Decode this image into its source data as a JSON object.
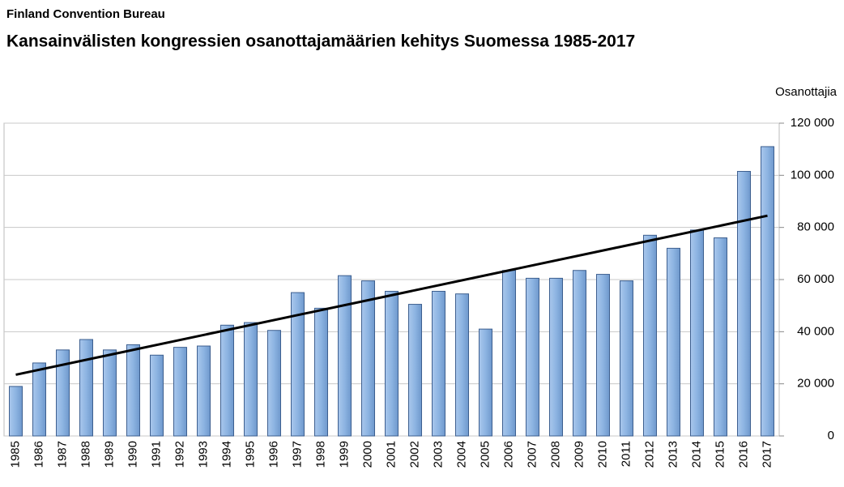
{
  "chart_data": {
    "type": "bar",
    "subtitle": "Finland Convention Bureau",
    "title": "Kansainvälisten kongressien osanottajamäärien kehitys Suomessa 1985-2017",
    "y_label": "Osanottajia",
    "categories": [
      "1985",
      "1986",
      "1987",
      "1988",
      "1989",
      "1990",
      "1991",
      "1992",
      "1993",
      "1994",
      "1995",
      "1996",
      "1997",
      "1998",
      "1999",
      "2000",
      "2001",
      "2002",
      "2003",
      "2004",
      "2005",
      "2006",
      "2007",
      "2008",
      "2009",
      "2010",
      "2011",
      "2012",
      "2013",
      "2014",
      "2015",
      "2016",
      "2017"
    ],
    "values": [
      19000,
      28000,
      33000,
      37000,
      33000,
      35000,
      31000,
      34000,
      34500,
      42500,
      43500,
      40500,
      55000,
      49000,
      61500,
      59500,
      55500,
      50500,
      55500,
      54500,
      41000,
      63500,
      60500,
      60500,
      63500,
      62000,
      59500,
      77000,
      72000,
      79000,
      76000,
      101500,
      111000
    ],
    "color": "#8db4e2",
    "trendline_values": [
      23500,
      84500
    ],
    "ylim": [
      0,
      120000
    ],
    "yticks": [
      0,
      {
        "value": 20000,
        "label": "20 000"
      },
      {
        "value": 40000,
        "label": "40 000"
      },
      {
        "value": 60000,
        "label": "60 000"
      },
      {
        "value": 80000,
        "label": "80 000"
      },
      {
        "value": 100000,
        "label": "100 000"
      },
      {
        "value": 120000,
        "label": "120 000"
      }
    ],
    "grid": true
  }
}
